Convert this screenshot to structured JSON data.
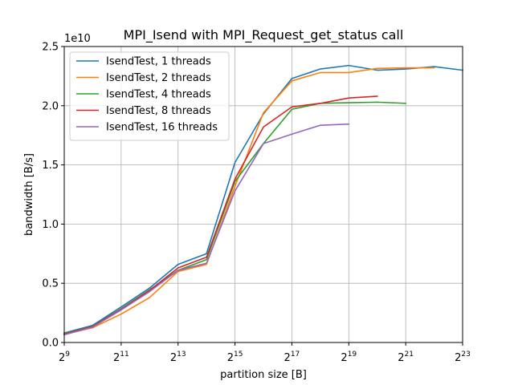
{
  "chart_data": {
    "type": "line",
    "title": "MPI_Isend with MPI_Request_get_status call",
    "xlabel": "partition size [B]",
    "ylabel": "bandwidth [B/s]",
    "y_offset_text": "1e10",
    "x_scale": "log2",
    "xlim": [
      512,
      8388608
    ],
    "ylim": [
      0,
      25000000000
    ],
    "x_ticks": [
      {
        "value": 512,
        "base": "2",
        "exp": "9"
      },
      {
        "value": 2048,
        "base": "2",
        "exp": "11"
      },
      {
        "value": 8192,
        "base": "2",
        "exp": "13"
      },
      {
        "value": 32768,
        "base": "2",
        "exp": "15"
      },
      {
        "value": 131072,
        "base": "2",
        "exp": "17"
      },
      {
        "value": 524288,
        "base": "2",
        "exp": "19"
      },
      {
        "value": 2097152,
        "base": "2",
        "exp": "21"
      },
      {
        "value": 8388608,
        "base": "2",
        "exp": "23"
      }
    ],
    "y_ticks": [
      {
        "value": 0,
        "label": "0.0"
      },
      {
        "value": 5000000000,
        "label": "0.5"
      },
      {
        "value": 10000000000,
        "label": "1.0"
      },
      {
        "value": 15000000000,
        "label": "1.5"
      },
      {
        "value": 20000000000,
        "label": "2.0"
      },
      {
        "value": 25000000000,
        "label": "2.5"
      }
    ],
    "grid": true,
    "legend_position": "upper-left",
    "series": [
      {
        "name": "IsendTest, 1 threads",
        "color": "#1f77b4",
        "x": [
          512,
          1024,
          2048,
          4096,
          8192,
          16384,
          32768,
          65536,
          131072,
          262144,
          524288,
          1048576,
          2097152,
          4194304,
          8388608
        ],
        "y": [
          800000000,
          1450000000,
          3000000000,
          4600000000,
          6600000000,
          7500000000,
          15200000000,
          19300000000,
          22300000000,
          23100000000,
          23400000000,
          23000000000,
          23100000000,
          23300000000,
          23000000000
        ]
      },
      {
        "name": "IsendTest, 2 threads",
        "color": "#ff7f0e",
        "x": [
          512,
          1024,
          2048,
          4096,
          8192,
          16384,
          32768,
          65536,
          131072,
          262144,
          524288,
          1048576,
          2097152,
          4194304
        ],
        "y": [
          700000000,
          1250000000,
          2400000000,
          3800000000,
          6000000000,
          6600000000,
          13200000000,
          19400000000,
          22100000000,
          22800000000,
          22800000000,
          23150000000,
          23200000000,
          23200000000
        ]
      },
      {
        "name": "IsendTest, 4 threads",
        "color": "#2ca02c",
        "x": [
          512,
          1024,
          2048,
          4096,
          8192,
          16384,
          32768,
          65536,
          131072,
          262144,
          524288,
          1048576,
          2097152
        ],
        "y": [
          750000000,
          1350000000,
          2850000000,
          4450000000,
          6100000000,
          7000000000,
          13600000000,
          16800000000,
          19700000000,
          20200000000,
          20250000000,
          20300000000,
          20200000000
        ]
      },
      {
        "name": "IsendTest, 8 threads",
        "color": "#d62728",
        "x": [
          512,
          1024,
          2048,
          4096,
          8192,
          16384,
          32768,
          65536,
          131072,
          262144,
          524288,
          1048576
        ],
        "y": [
          700000000,
          1350000000,
          2800000000,
          4400000000,
          6300000000,
          7200000000,
          13800000000,
          18200000000,
          19900000000,
          20200000000,
          20650000000,
          20800000000
        ]
      },
      {
        "name": "IsendTest, 16 threads",
        "color": "#9467bd",
        "x": [
          512,
          1024,
          2048,
          4096,
          8192,
          16384,
          32768,
          65536,
          131072,
          262144,
          524288
        ],
        "y": [
          650000000,
          1300000000,
          2750000000,
          4300000000,
          6100000000,
          6700000000,
          12800000000,
          16800000000,
          17600000000,
          18350000000,
          18450000000
        ]
      }
    ]
  }
}
